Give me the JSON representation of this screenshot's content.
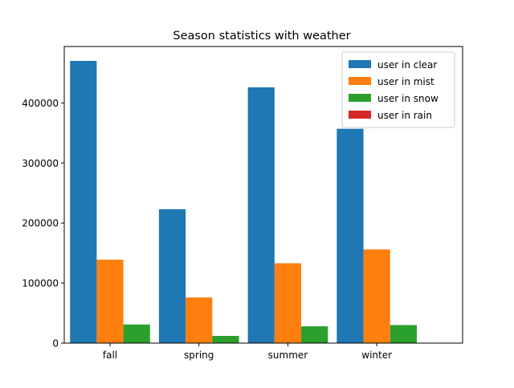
{
  "chart_data": {
    "type": "bar",
    "title": "Season statistics with weather",
    "xlabel": "",
    "ylabel": "",
    "categories": [
      "fall",
      "spring",
      "summer",
      "winter"
    ],
    "series": [
      {
        "name": "user in clear",
        "color": "#1f77b4",
        "values": [
          470000,
          223000,
          426000,
          357000
        ]
      },
      {
        "name": "user in mist",
        "color": "#ff7f0e",
        "values": [
          139000,
          76000,
          133000,
          156000
        ]
      },
      {
        "name": "user in snow",
        "color": "#2ca02c",
        "values": [
          31000,
          12000,
          28000,
          30000
        ]
      },
      {
        "name": "user in rain",
        "color": "#d62728",
        "values": [
          0,
          0,
          0,
          0
        ]
      }
    ],
    "yticks": [
      0,
      100000,
      200000,
      300000,
      400000
    ],
    "ytick_labels": [
      "0",
      "100000",
      "200000",
      "300000",
      "400000"
    ],
    "ylim": [
      0,
      494000
    ],
    "grid": false,
    "legend_loc": "upper right"
  }
}
